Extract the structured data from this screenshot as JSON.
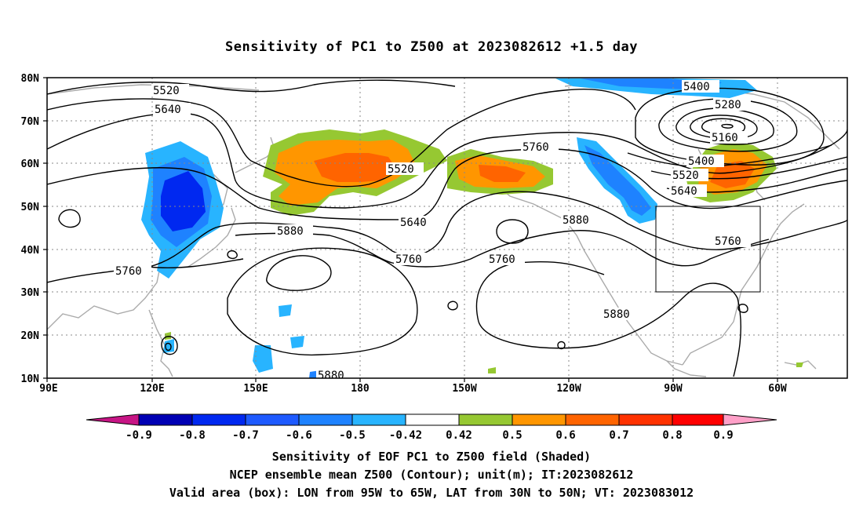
{
  "title": "Sensitivity of PC1 to Z500 at 2023082612 +1.5 day",
  "map": {
    "lat_labels": [
      "80N",
      "70N",
      "60N",
      "50N",
      "40N",
      "30N",
      "20N",
      "10N"
    ],
    "lon_labels": [
      "90E",
      "120E",
      "150E",
      "180",
      "150W",
      "120W",
      "90W",
      "60W"
    ],
    "contour_labels": [
      "5520",
      "5640",
      "5400",
      "5280",
      "5160",
      "5760",
      "5400",
      "5520",
      "5640",
      "5520",
      "5640",
      "5880",
      "5760",
      "5760",
      "5880",
      "5760",
      "5880",
      "5760",
      "5880"
    ],
    "valid_box": {
      "lon": [
        -95,
        -65
      ],
      "lat": [
        30,
        50
      ]
    }
  },
  "colorbar": {
    "labels": [
      "-0.9",
      "-0.8",
      "-0.7",
      "-0.6",
      "-0.5",
      "-0.42",
      "0.42",
      "0.5",
      "0.6",
      "0.7",
      "0.8",
      "0.9"
    ],
    "colors": [
      "#c71585",
      "#0000b4",
      "#0028f0",
      "#1e5aff",
      "#1e82ff",
      "#28b4ff",
      "#00d2ff",
      "#ffffff",
      "#96c832",
      "#ff9600",
      "#ff6400",
      "#ff3200",
      "#ff0000",
      "#ffa0c8"
    ]
  },
  "captions": {
    "line1": "Sensitivity of EOF PC1 to Z500 field (Shaded)",
    "line2": "NCEP ensemble mean Z500 (Contour); unit(m); IT:2023082612",
    "line3": "Valid area (box): LON from 95W to 65W, LAT from 30N to 50N; VT: 2023083012"
  }
}
